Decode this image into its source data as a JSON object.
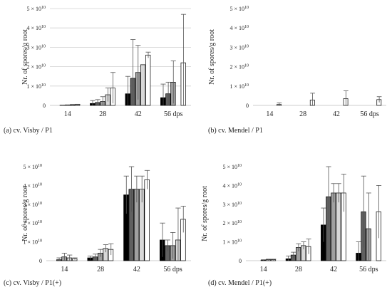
{
  "figure": {
    "panels": [
      {
        "key": "a",
        "ylabel": "Nr. of spores/g root",
        "caption": "(a) cv. Visby / P1",
        "ytick_labels": [
          "0",
          "1 × 10¹⁰",
          "2 × 10¹⁰",
          "3 × 10¹⁰",
          "4 × 10¹⁰",
          "5 × 10¹⁰"
        ]
      },
      {
        "key": "b",
        "ylabel": "Nr. of spores/g root",
        "caption": "(b) cv. Mendel / P1",
        "ytick_labels": [
          "0",
          "1 × 10¹⁰",
          "2 × 10¹⁰",
          "3 × 10¹⁰",
          "4 × 10¹⁰",
          "5 × 10¹⁰"
        ]
      },
      {
        "key": "c",
        "ylabel": "Nr. of spores/g root",
        "caption": "(c) cv. Visby / P1(+)",
        "ytick_labels": [
          "0",
          "1 × 10¹⁰",
          "2 × 10¹⁰",
          "3 × 10¹⁰",
          "4 × 10¹⁰",
          "5 × 10¹⁰"
        ]
      },
      {
        "key": "d",
        "ylabel": "Nr. of spores/g root",
        "caption": "(d) cv. Mendel / P1(+)",
        "ytick_labels": [
          "0",
          "1 × 10¹⁰",
          "2 × 10¹⁰",
          "3 × 10¹⁰",
          "4 × 10¹⁰",
          "5 × 10¹⁰"
        ]
      }
    ]
  },
  "chart_data": [
    {
      "type": "bar",
      "title": "",
      "xlabel": "",
      "ylabel": "Nr. of spores/g root",
      "categories": [
        "14",
        "28",
        "42",
        "56 dps"
      ],
      "ylim": [
        0,
        50000000000
      ],
      "grid": true,
      "bar_colors": [
        "#000000",
        "#606060",
        "#a0a0a0",
        "#d8d8d8",
        "#ffffff"
      ],
      "series": [
        {
          "values": [
            0,
            1000000000,
            6000000000,
            4000000000
          ],
          "errors": [
            0,
            1500000000,
            9000000000,
            7000000000
          ]
        },
        {
          "values": [
            100000000,
            1500000000,
            14000000000,
            6000000000
          ],
          "errors": [
            100000000,
            1500000000,
            20000000000,
            6000000000
          ]
        },
        {
          "values": [
            200000000,
            2000000000,
            17000000000,
            12000000000
          ],
          "errors": [
            100000000,
            2500000000,
            14000000000,
            11000000000
          ]
        },
        {
          "values": [
            300000000,
            5500000000,
            21000000000,
            0
          ],
          "errors": [
            200000000,
            3500000000,
            0,
            0
          ]
        },
        {
          "values": [
            400000000,
            9000000000,
            26000000000,
            22000000000
          ],
          "errors": [
            200000000,
            8000000000,
            1500000000,
            25000000000
          ]
        }
      ]
    },
    {
      "type": "bar",
      "title": "",
      "xlabel": "",
      "ylabel": "Nr. of spores/g root",
      "categories": [
        "14",
        "28",
        "42",
        "56 dps"
      ],
      "ylim": [
        0,
        50000000000
      ],
      "grid": false,
      "bar_colors": [
        "#000000",
        "#606060",
        "#a0a0a0",
        "#d8d8d8",
        "#ffffff"
      ],
      "series": [
        {
          "values": [
            0,
            0,
            0,
            0
          ],
          "errors": [
            0,
            0,
            0,
            0
          ]
        },
        {
          "values": [
            0,
            0,
            0,
            0
          ],
          "errors": [
            0,
            0,
            0,
            0
          ]
        },
        {
          "values": [
            0,
            0,
            0,
            0
          ],
          "errors": [
            0,
            0,
            0,
            0
          ]
        },
        {
          "values": [
            0,
            0,
            0,
            0
          ],
          "errors": [
            0,
            0,
            0,
            0
          ]
        },
        {
          "values": [
            500000000,
            2800000000,
            3500000000,
            3000000000
          ],
          "errors": [
            800000000,
            3500000000,
            4000000000,
            1500000000
          ]
        }
      ]
    },
    {
      "type": "bar",
      "title": "",
      "xlabel": "",
      "ylabel": "Nr. of spores/g root",
      "categories": [
        "14",
        "28",
        "42",
        "56 dps"
      ],
      "ylim": [
        0,
        50000000000
      ],
      "grid": false,
      "bar_colors": [
        "#000000",
        "#606060",
        "#a0a0a0",
        "#d8d8d8",
        "#ffffff"
      ],
      "series": [
        {
          "values": [
            0,
            1500000000,
            35000000000,
            11000000000
          ],
          "errors": [
            0,
            1000000000,
            10000000000,
            9000000000
          ]
        },
        {
          "values": [
            500000000,
            2000000000,
            38000000000,
            8000000000
          ],
          "errors": [
            1000000000,
            1500000000,
            12000000000,
            3000000000
          ]
        },
        {
          "values": [
            2000000000,
            4000000000,
            38000000000,
            8000000000
          ],
          "errors": [
            2000000000,
            2000000000,
            7000000000,
            7000000000
          ]
        },
        {
          "values": [
            1500000000,
            6500000000,
            38000000000,
            11000000000
          ],
          "errors": [
            1500000000,
            2000000000,
            7000000000,
            17000000000
          ]
        },
        {
          "values": [
            1000000000,
            6000000000,
            43000000000,
            22000000000
          ],
          "errors": [
            500000000,
            3000000000,
            5000000000,
            7000000000
          ]
        }
      ]
    },
    {
      "type": "bar",
      "title": "",
      "xlabel": "",
      "ylabel": "Nr. of spores/g root",
      "categories": [
        "14",
        "28",
        "42",
        "56 dps"
      ],
      "ylim": [
        0,
        50000000000
      ],
      "grid": false,
      "bar_colors": [
        "#000000",
        "#606060",
        "#a0a0a0",
        "#d8d8d8",
        "#ffffff"
      ],
      "series": [
        {
          "values": [
            0,
            1000000000,
            19000000000,
            4000000000
          ],
          "errors": [
            0,
            1500000000,
            9000000000,
            6000000000
          ]
        },
        {
          "values": [
            0,
            3000000000,
            34000000000,
            26000000000
          ],
          "errors": [
            0,
            1500000000,
            16000000000,
            19000000000
          ]
        },
        {
          "values": [
            300000000,
            7000000000,
            36000000000,
            17000000000
          ],
          "errors": [
            200000000,
            2000000000,
            5000000000,
            19000000000
          ]
        },
        {
          "values": [
            500000000,
            8000000000,
            36000000000,
            0
          ],
          "errors": [
            300000000,
            2000000000,
            5000000000,
            0
          ]
        },
        {
          "values": [
            500000000,
            7500000000,
            36000000000,
            26000000000
          ],
          "errors": [
            300000000,
            4000000000,
            10000000000,
            14000000000
          ]
        }
      ]
    }
  ]
}
